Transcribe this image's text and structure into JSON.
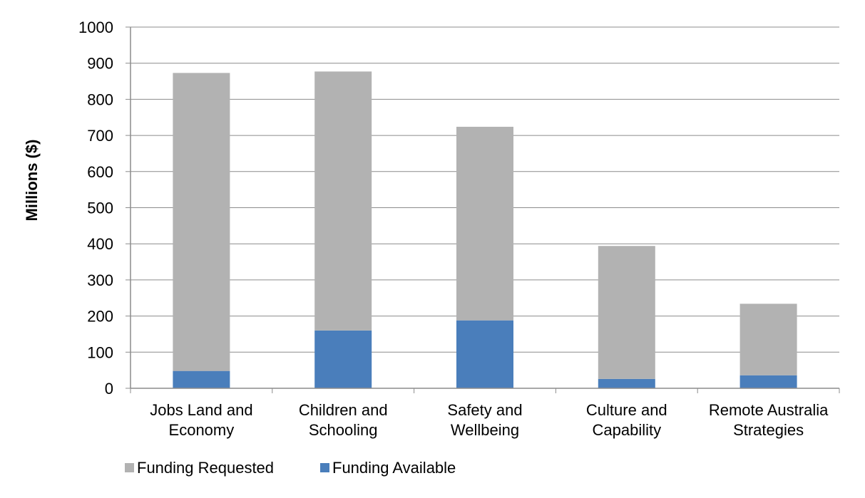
{
  "chart_data": {
    "type": "bar",
    "stacked": true,
    "title": "",
    "xlabel": "",
    "ylabel": "Millions ($)",
    "ylim": [
      0,
      1000
    ],
    "ytick_step": 100,
    "grid": true,
    "legend_position": "bottom-left",
    "categories": [
      [
        "Jobs Land and",
        "Economy"
      ],
      [
        "Children and",
        "Schooling"
      ],
      [
        "Safety and",
        "Wellbeing"
      ],
      [
        "Culture and",
        "Capability"
      ],
      [
        "Remote Australia",
        "Strategies"
      ]
    ],
    "series": [
      {
        "name": "Funding Available",
        "color": "#4a7ebb",
        "values": [
          48,
          160,
          188,
          26,
          36
        ]
      },
      {
        "name": "Funding Requested",
        "color": "#b2b2b2",
        "values": [
          825,
          717,
          536,
          368,
          198
        ]
      }
    ],
    "legend_order": [
      "Funding Requested",
      "Funding Available"
    ]
  }
}
